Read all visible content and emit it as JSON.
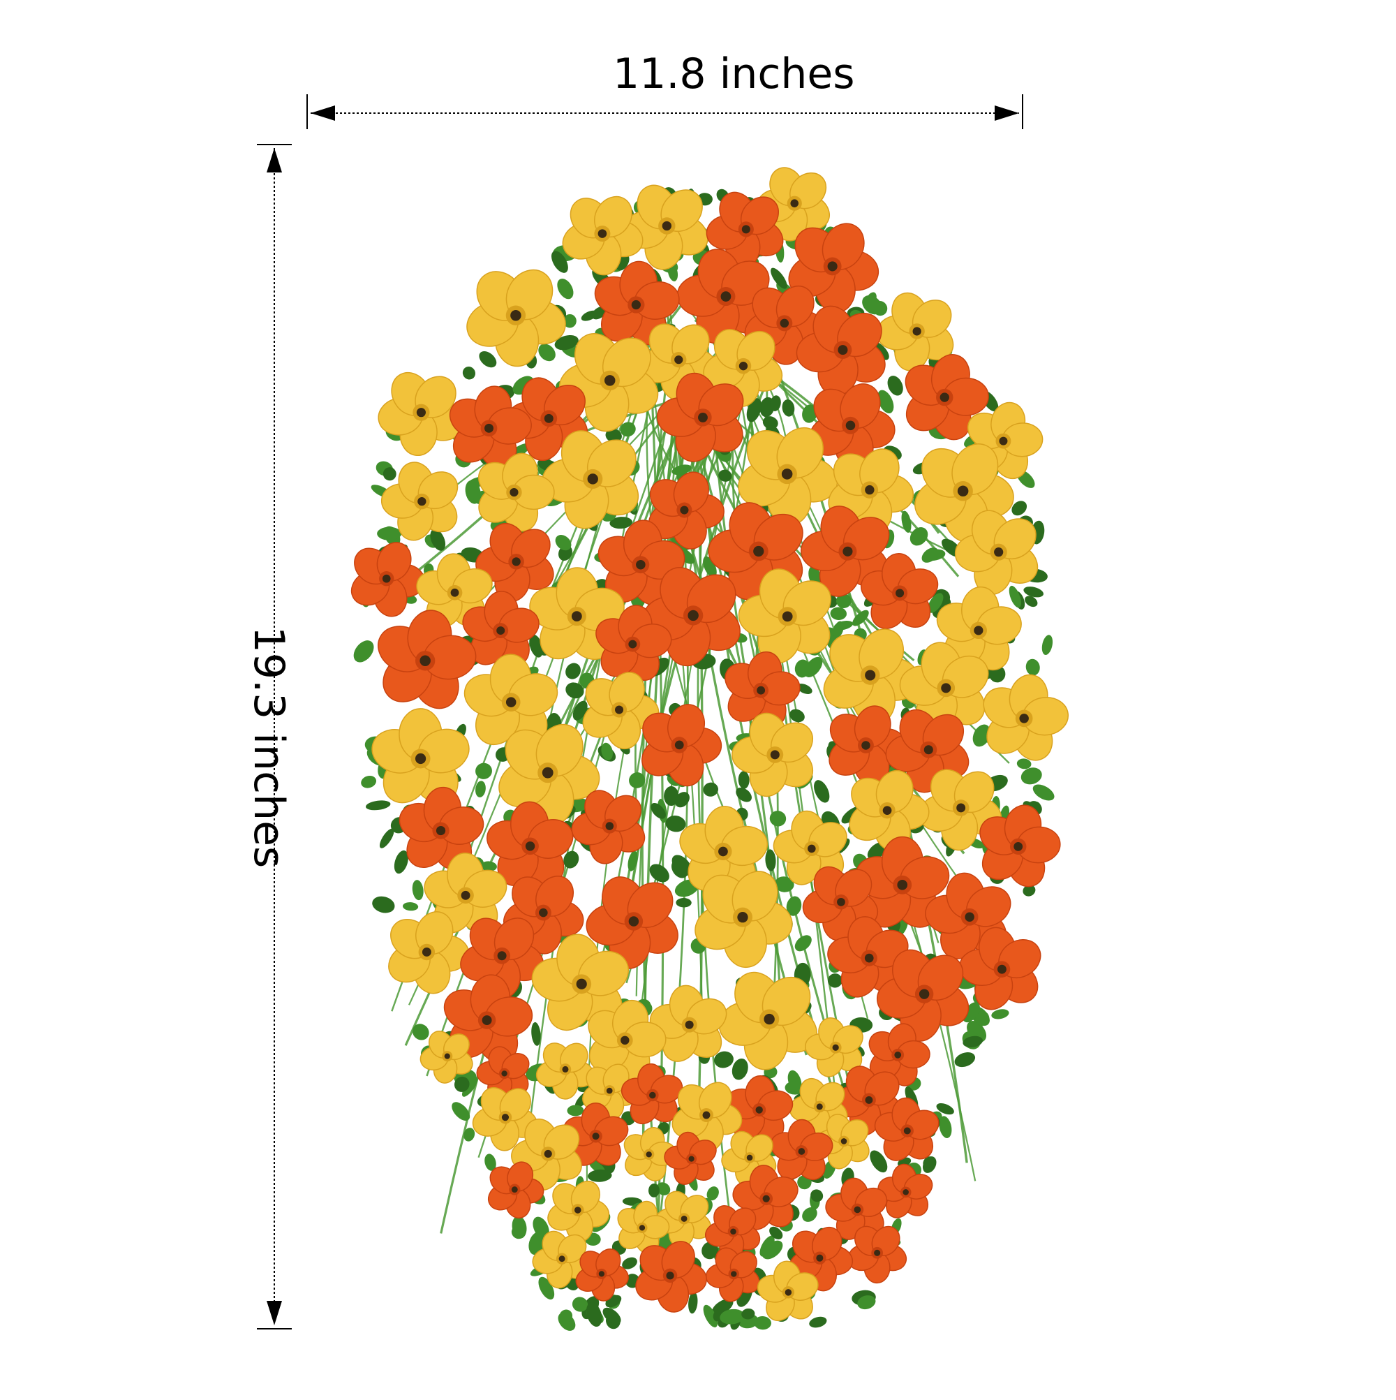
{
  "dimensions": {
    "width_label": "11.8 inches",
    "height_label": "19.3 inches"
  },
  "colors": {
    "background": "#ffffff",
    "dimension_line": "#000000",
    "petal_orange": "#e8581c",
    "petal_orange_dark": "#c8420f",
    "petal_yellow": "#f2c23a",
    "petal_yellow_dark": "#d9a21e",
    "flower_center": "#3a2a14",
    "leaf_green": "#3f8f2c",
    "leaf_green_dark": "#2b6b1e",
    "stem_green": "#4c9a36"
  },
  "picture": {
    "subject": "hanging-flower-bush"
  }
}
